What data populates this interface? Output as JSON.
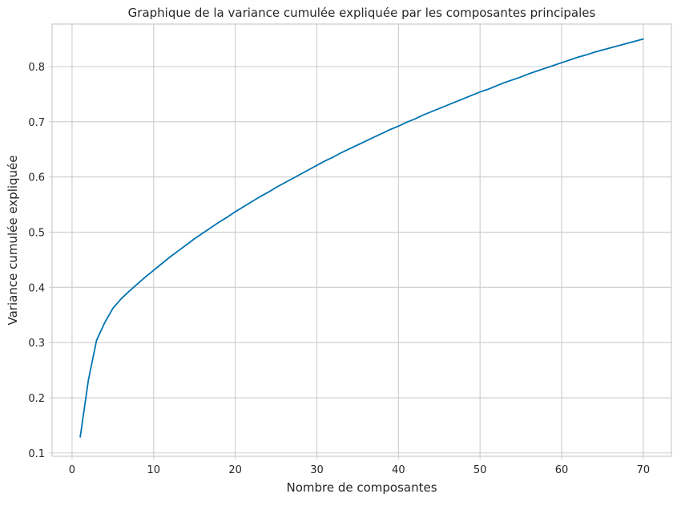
{
  "chart_data": {
    "type": "line",
    "title": "Graphique de la variance cumulée expliquée par les composantes principales",
    "xlabel": "Nombre de composantes",
    "ylabel": "Variance cumulée expliquée",
    "xlim": [
      -2.45,
      73.45
    ],
    "ylim": [
      0.094,
      0.877
    ],
    "xticks": [
      0,
      10,
      20,
      30,
      40,
      50,
      60,
      70
    ],
    "xtick_labels": [
      "0",
      "10",
      "20",
      "30",
      "40",
      "50",
      "60",
      "70"
    ],
    "yticks": [
      0.1,
      0.2,
      0.3,
      0.4,
      0.5,
      0.6,
      0.7,
      0.8
    ],
    "ytick_labels": [
      "0.1",
      "0.2",
      "0.3",
      "0.4",
      "0.5",
      "0.6",
      "0.7",
      "0.8"
    ],
    "grid": true,
    "legend": "none",
    "line_color": "#0173b2",
    "grid_color": "#cccccc",
    "series": [
      {
        "x": [
          1,
          2,
          3,
          4,
          5,
          6,
          7,
          8,
          9,
          10,
          11,
          12,
          13,
          14,
          15,
          16,
          17,
          18,
          19,
          20,
          21,
          22,
          23,
          24,
          25,
          26,
          27,
          28,
          29,
          30,
          31,
          32,
          33,
          34,
          35,
          36,
          37,
          38,
          39,
          40,
          41,
          42,
          43,
          44,
          45,
          46,
          47,
          48,
          49,
          50,
          51,
          52,
          53,
          54,
          55,
          56,
          57,
          58,
          59,
          60,
          61,
          62,
          63,
          64,
          65,
          66,
          67,
          68,
          69,
          70
        ],
        "values": [
          0.129,
          0.232,
          0.304,
          0.336,
          0.362,
          0.379,
          0.393,
          0.406,
          0.419,
          0.431,
          0.443,
          0.455,
          0.466,
          0.477,
          0.488,
          0.498,
          0.508,
          0.518,
          0.527,
          0.537,
          0.546,
          0.555,
          0.564,
          0.572,
          0.581,
          0.589,
          0.597,
          0.605,
          0.613,
          0.621,
          0.629,
          0.636,
          0.644,
          0.651,
          0.658,
          0.665,
          0.672,
          0.679,
          0.686,
          0.692,
          0.699,
          0.705,
          0.712,
          0.718,
          0.724,
          0.73,
          0.736,
          0.742,
          0.748,
          0.754,
          0.759,
          0.765,
          0.771,
          0.776,
          0.781,
          0.787,
          0.792,
          0.797,
          0.802,
          0.807,
          0.812,
          0.817,
          0.821,
          0.826,
          0.83,
          0.834,
          0.838,
          0.842,
          0.846,
          0.85
        ]
      }
    ]
  }
}
